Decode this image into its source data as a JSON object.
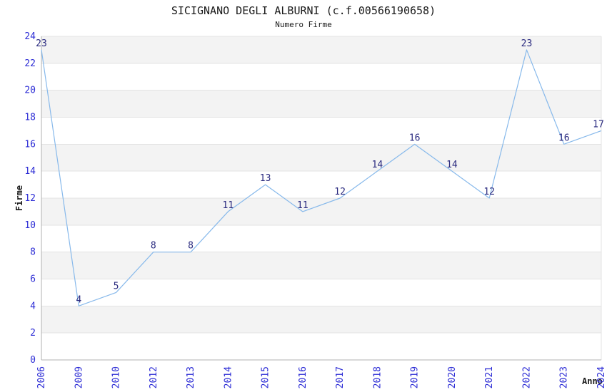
{
  "chart_data": {
    "type": "line",
    "title": "SICIGNANO DEGLI ALBURNI (c.f.00566190658)",
    "subtitle": "Numero Firme",
    "xlabel": "Anno",
    "ylabel": "Firme",
    "categories": [
      "2006",
      "2009",
      "2010",
      "2012",
      "2013",
      "2014",
      "2015",
      "2016",
      "2017",
      "2018",
      "2019",
      "2020",
      "2021",
      "2022",
      "2023",
      "2024"
    ],
    "series": [
      {
        "name": "Numero Firme",
        "values": [
          23,
          4,
          5,
          8,
          8,
          11,
          13,
          11,
          12,
          14,
          16,
          14,
          12,
          23,
          16,
          17
        ]
      }
    ],
    "ylim": [
      0,
      24
    ],
    "ytick_step": 2,
    "point_labels_shown": true,
    "legend": "none",
    "grid": "horizontal gridlines every 2 units with alternating shaded bands",
    "x_tick_rotation_degrees": -90,
    "colors": {
      "line": "#87b9eb",
      "band_fill": "#f3f3f3",
      "gridline": "#e3e3e3",
      "spine": "#b0b0b0",
      "tick_text": "#2b2bd5",
      "point_label_text": "#2a2a7f",
      "title_text": "#1a1a1a",
      "background": "#ffffff"
    }
  }
}
